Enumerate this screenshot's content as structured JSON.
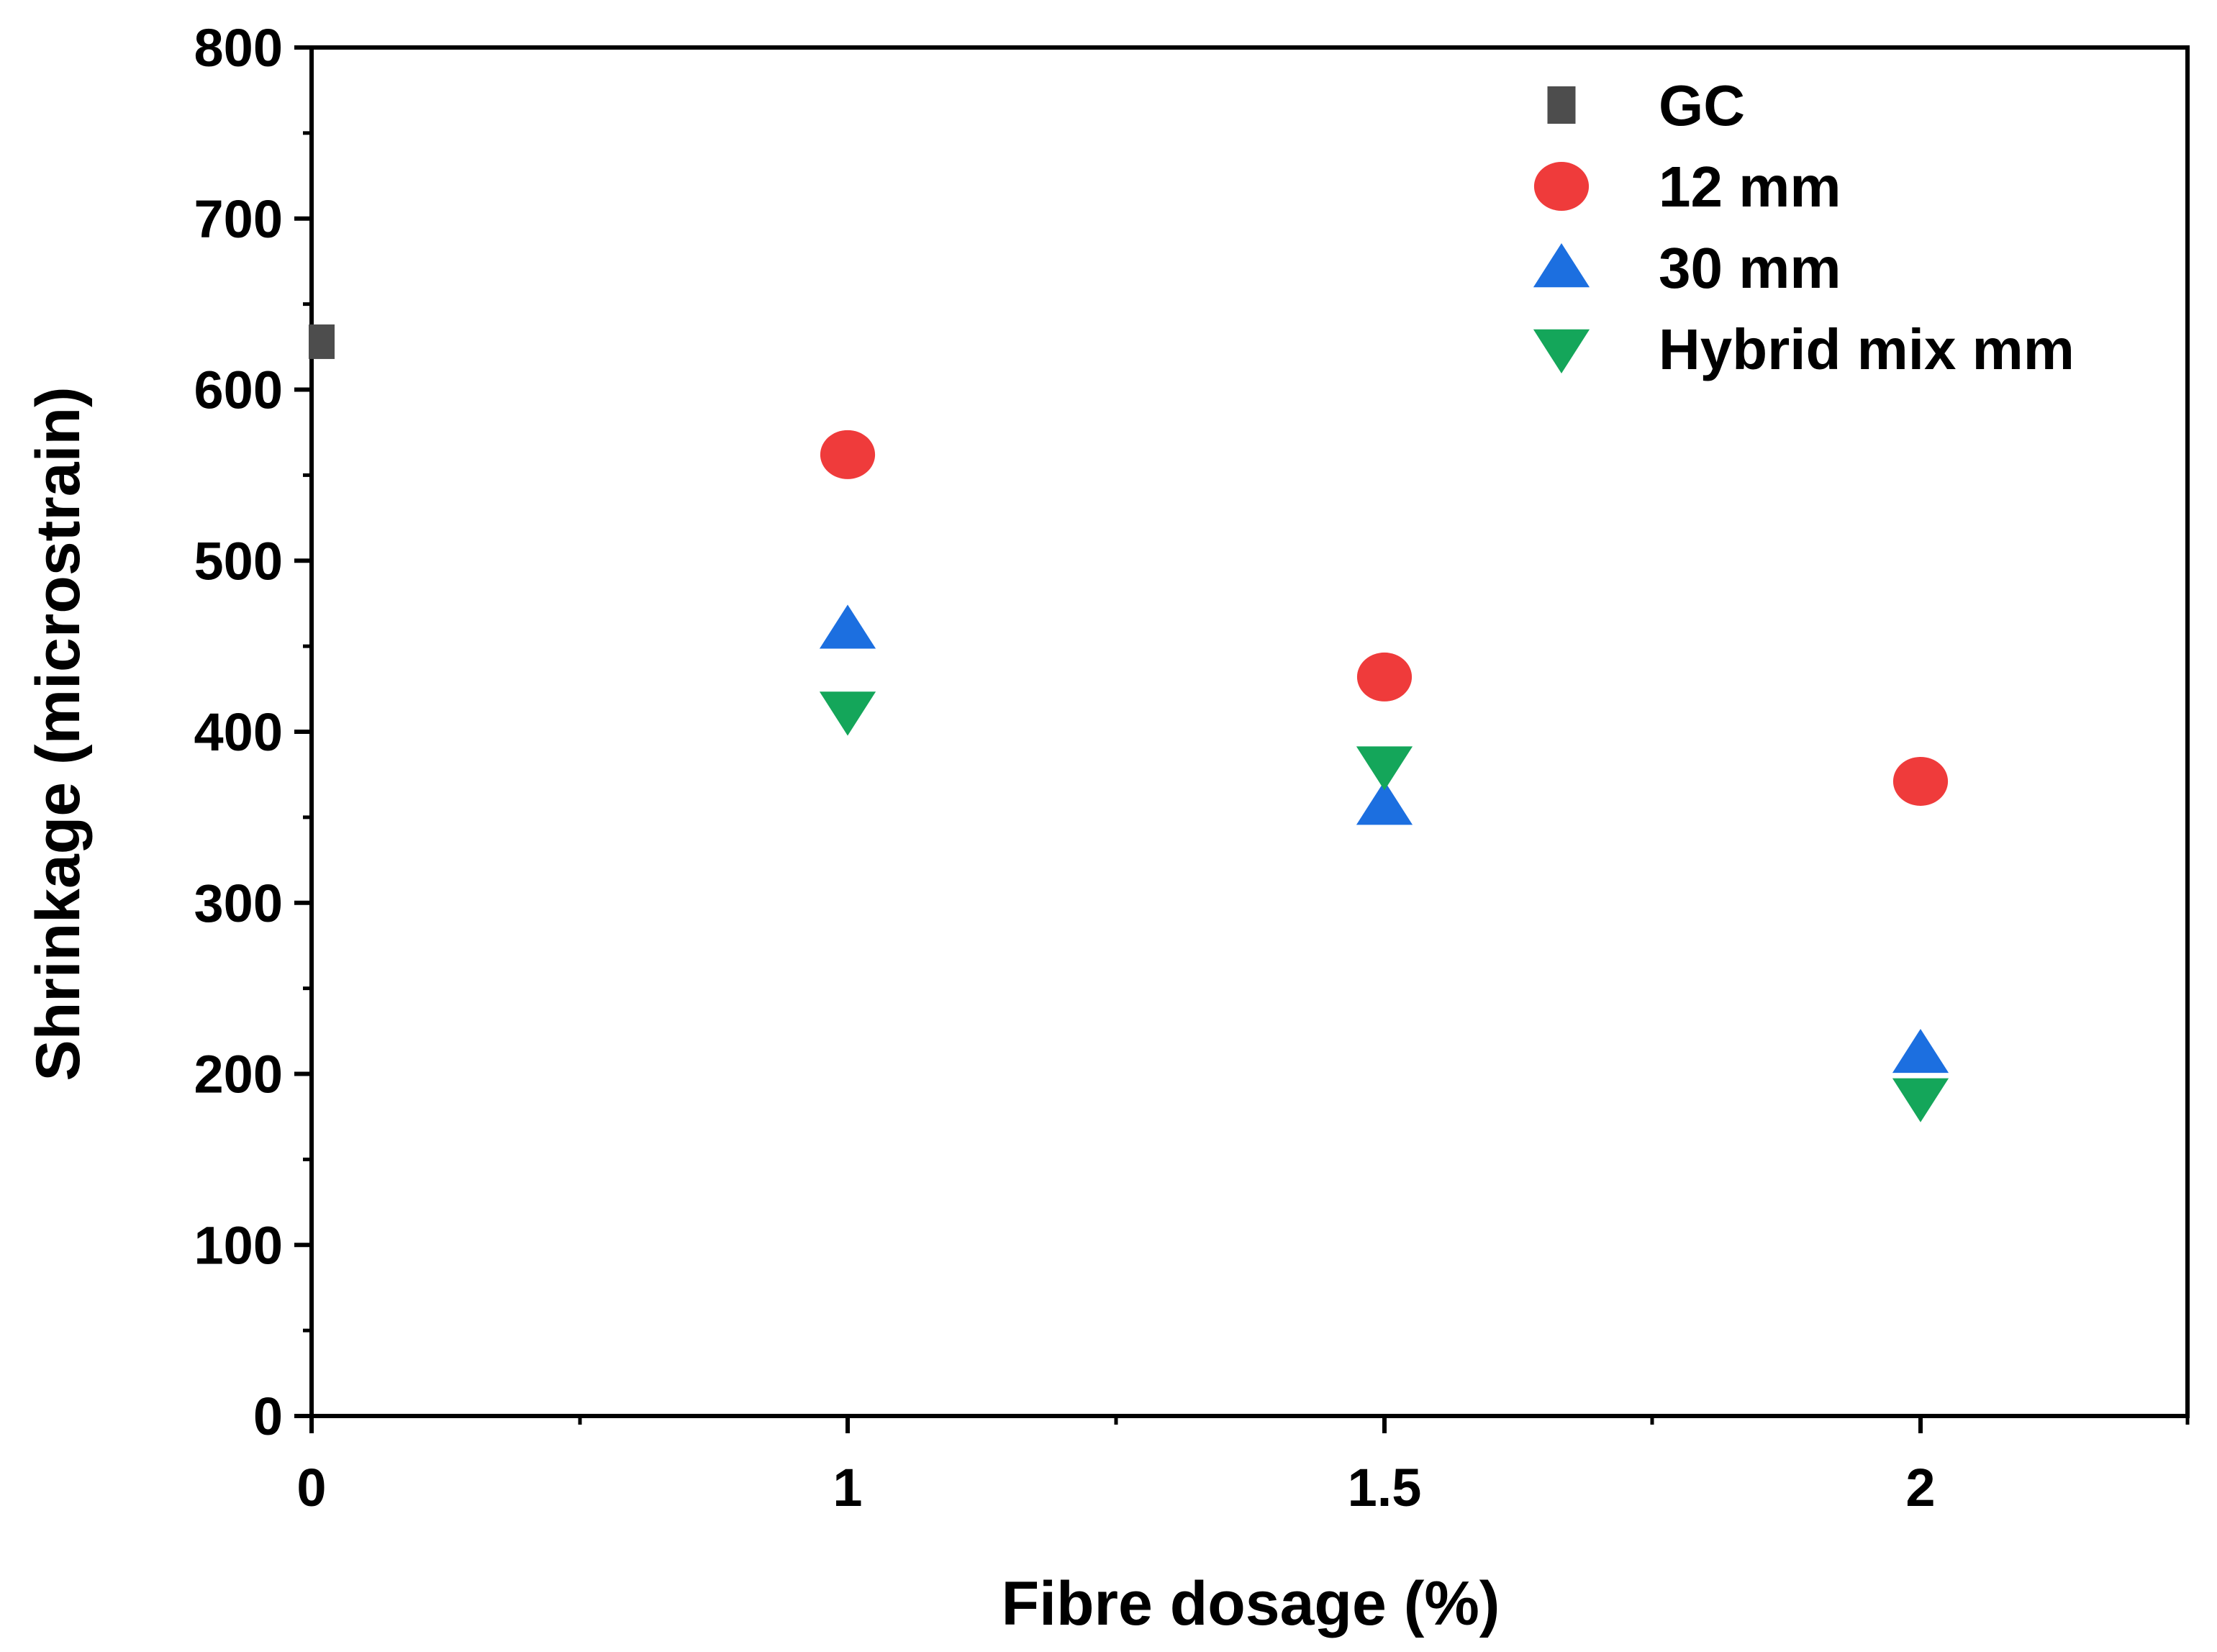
{
  "chart_data": {
    "type": "scatter",
    "title": "",
    "xlabel": "Fibre dosage (%)",
    "ylabel": "Shrinkage (microstrain)",
    "ylim": [
      0,
      800
    ],
    "x_ticks": [
      "0",
      "1",
      "1.5",
      "2"
    ],
    "y_ticks": [
      0,
      100,
      200,
      300,
      400,
      500,
      600,
      700,
      800
    ],
    "legend_position": "top-right",
    "grid": false,
    "series": [
      {
        "name": "GC",
        "marker": "square",
        "color": "#4d4d4d",
        "points": [
          {
            "x": "0",
            "y": 628
          }
        ]
      },
      {
        "name": "12 mm",
        "marker": "circle",
        "color": "#ef3b3b",
        "points": [
          {
            "x": "1",
            "y": 562
          },
          {
            "x": "1.5",
            "y": 432
          },
          {
            "x": "2",
            "y": 371
          }
        ]
      },
      {
        "name": "30 mm",
        "marker": "triangle-up",
        "color": "#1c6fe0",
        "points": [
          {
            "x": "1",
            "y": 460
          },
          {
            "x": "1.5",
            "y": 357
          },
          {
            "x": "2",
            "y": 212
          }
        ]
      },
      {
        "name": "Hybrid mix mm",
        "marker": "triangle-down",
        "color": "#14a65a",
        "points": [
          {
            "x": "1",
            "y": 412
          },
          {
            "x": "1.5",
            "y": 380
          },
          {
            "x": "2",
            "y": 186
          }
        ]
      }
    ]
  }
}
